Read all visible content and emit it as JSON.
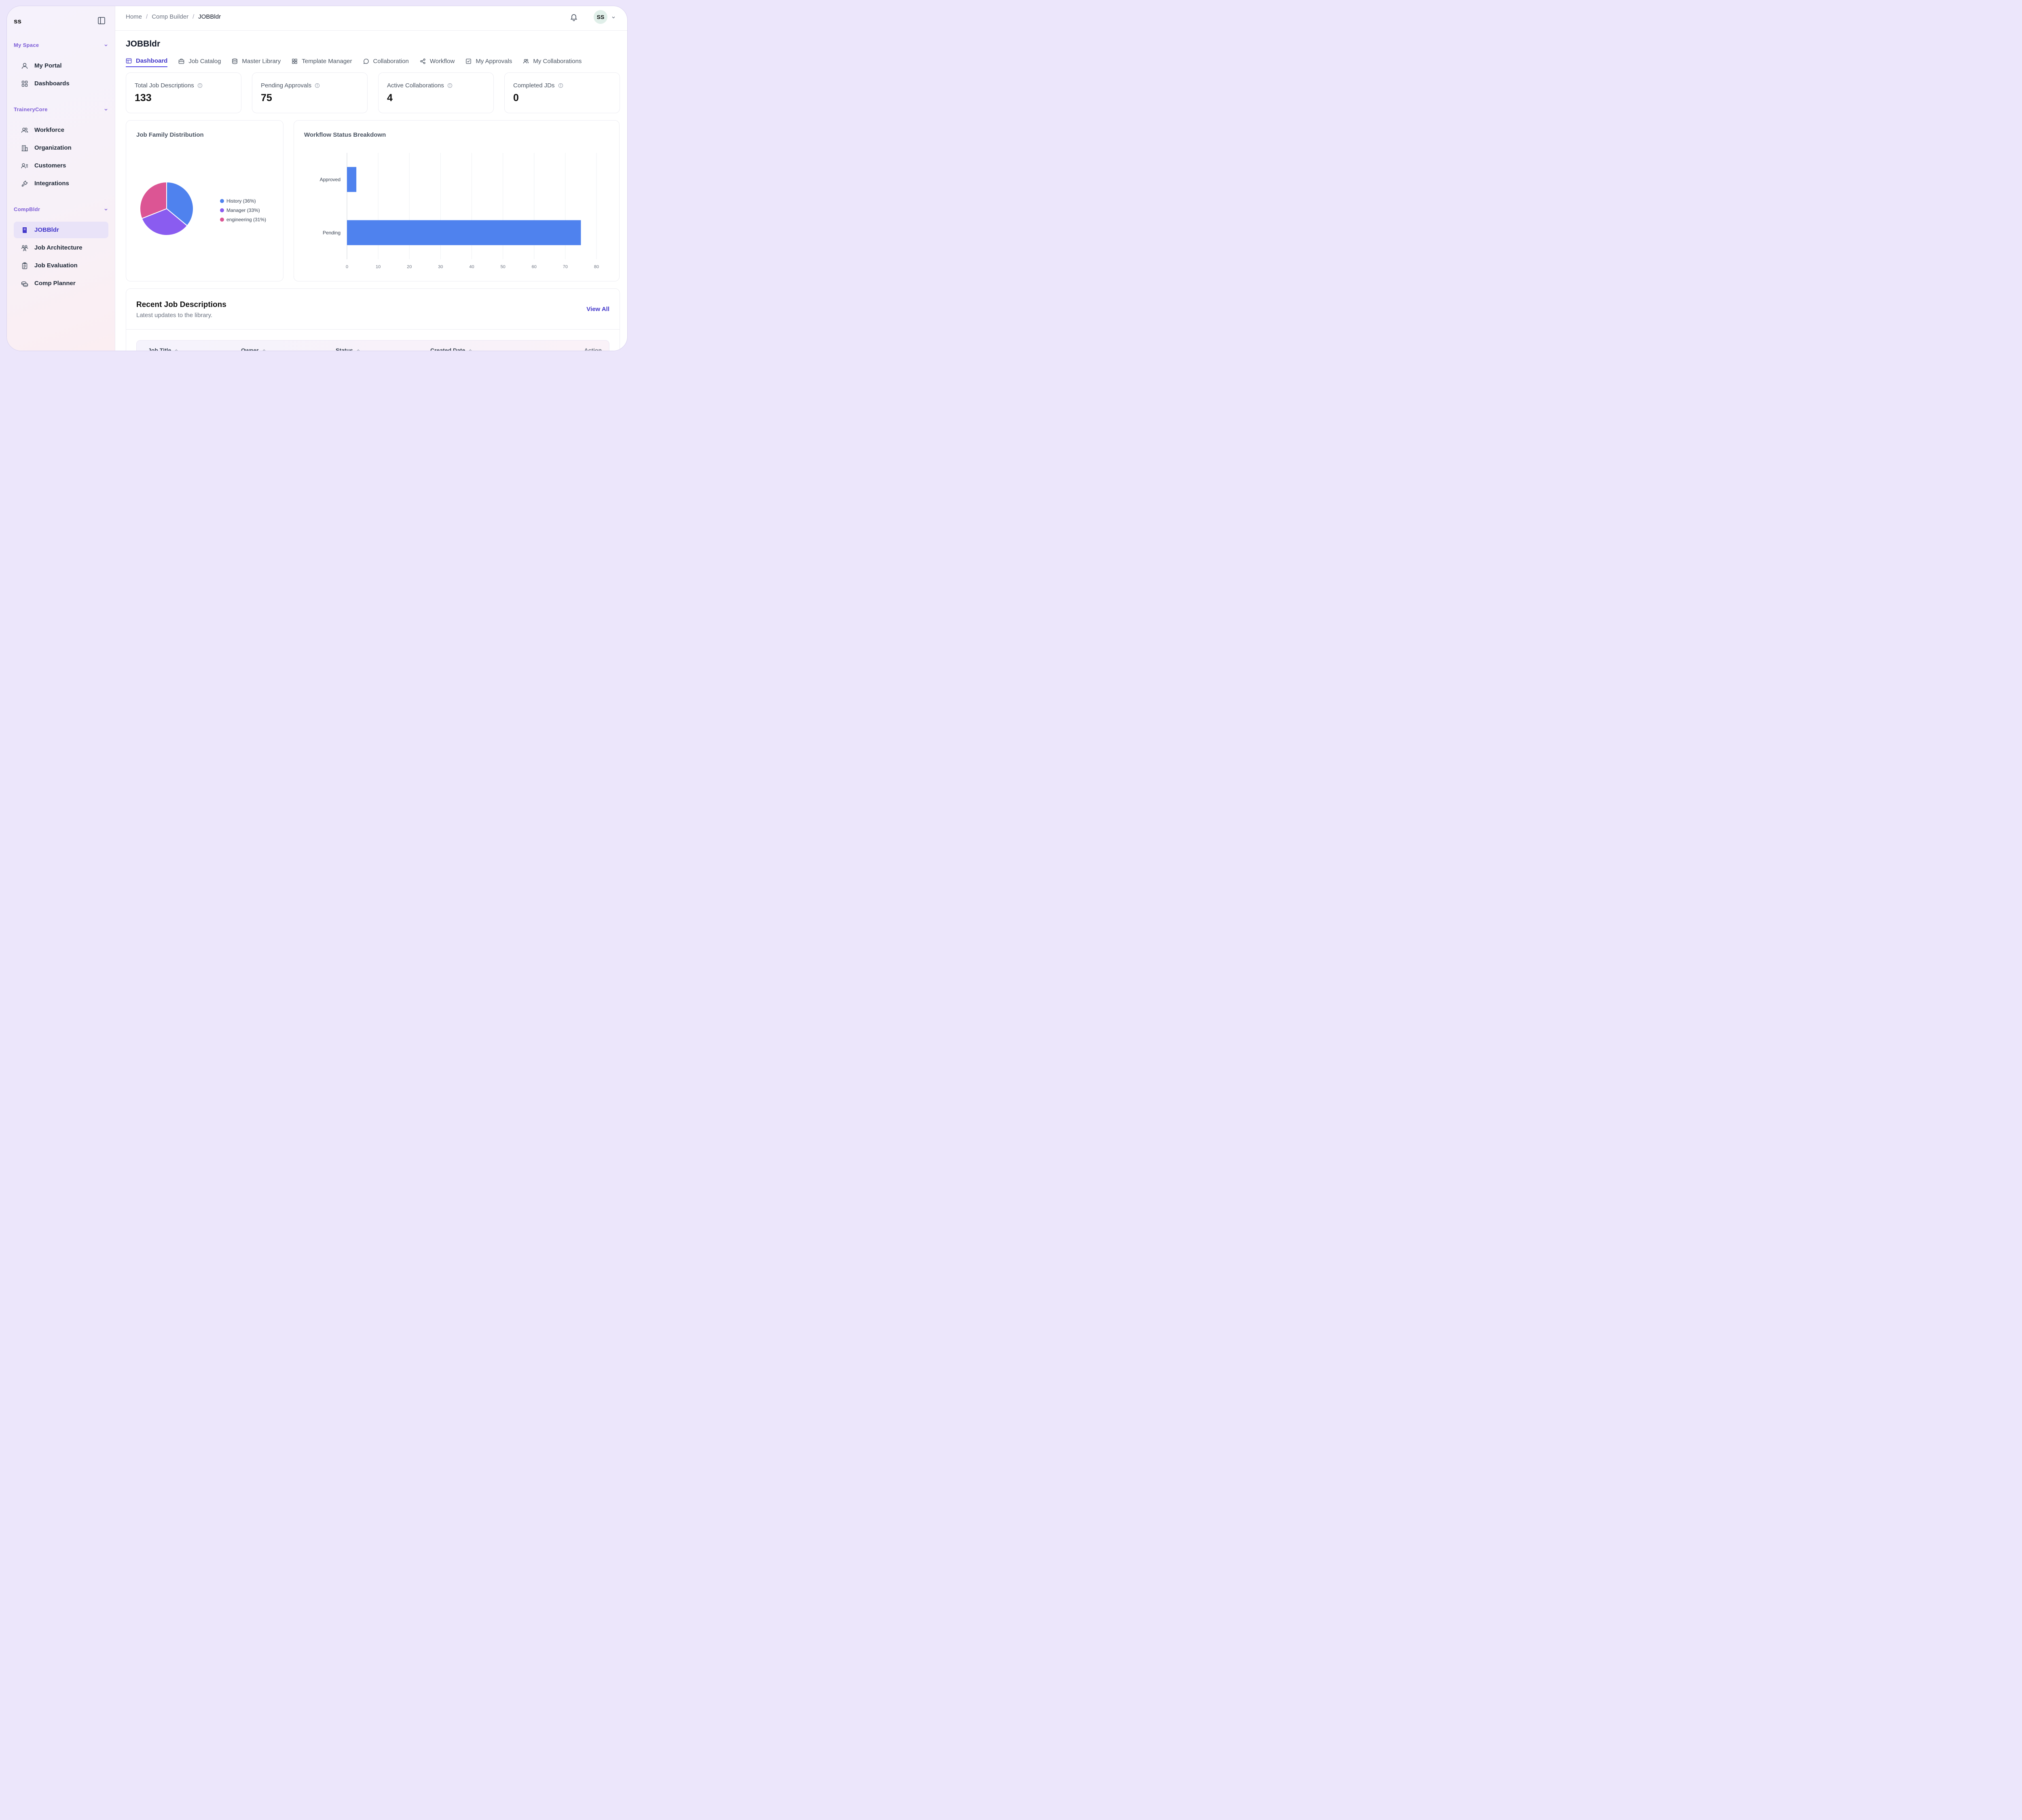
{
  "brand": "ss",
  "sidebar": {
    "sections": [
      {
        "title": "My Space",
        "items": [
          {
            "label": "My Portal",
            "icon": "user-icon"
          },
          {
            "label": "Dashboards",
            "icon": "grid-icon"
          }
        ]
      },
      {
        "title": "TraineryCore",
        "items": [
          {
            "label": "Workforce",
            "icon": "users-icon"
          },
          {
            "label": "Organization",
            "icon": "building-icon"
          },
          {
            "label": "Customers",
            "icon": "user-list-icon"
          },
          {
            "label": "Integrations",
            "icon": "plug-icon"
          }
        ]
      },
      {
        "title": "CompBldr",
        "items": [
          {
            "label": "JOBBldr",
            "icon": "book-icon",
            "active": true
          },
          {
            "label": "Job Architecture",
            "icon": "team-icon"
          },
          {
            "label": "Job Evaluation",
            "icon": "clipboard-icon"
          },
          {
            "label": "Comp Planner",
            "icon": "coins-icon"
          }
        ]
      }
    ]
  },
  "header": {
    "breadcrumb": [
      "Home",
      "Comp Builder",
      "JOBBldr"
    ],
    "avatar_initials": "SS"
  },
  "page": {
    "title": "JOBBldr",
    "tabs": [
      {
        "label": "Dashboard",
        "icon": "layout-icon",
        "active": true
      },
      {
        "label": "Job Catalog",
        "icon": "briefcase-icon"
      },
      {
        "label": "Master Library",
        "icon": "database-icon"
      },
      {
        "label": "Template Manager",
        "icon": "grid-icon"
      },
      {
        "label": "Collaboration",
        "icon": "chat-icon"
      },
      {
        "label": "Workflow",
        "icon": "share-icon"
      },
      {
        "label": "My Approvals",
        "icon": "checkbox-icon"
      },
      {
        "label": "My Collaborations",
        "icon": "users-icon"
      }
    ]
  },
  "stats": [
    {
      "label": "Total Job Descriptions",
      "value": "133"
    },
    {
      "label": "Pending Approvals",
      "value": "75"
    },
    {
      "label": "Active Collaborations",
      "value": "4"
    },
    {
      "label": "Completed JDs",
      "value": "0"
    }
  ],
  "chart_data": [
    {
      "type": "pie",
      "title": "Job Family Distribution",
      "slices": [
        {
          "label": "History (36%)",
          "value": 36,
          "color": "#4f82ee"
        },
        {
          "label": "Manager (33%)",
          "value": 33,
          "color": "#8a5cf0"
        },
        {
          "label": "engineering (31%)",
          "value": 31,
          "color": "#dc5594"
        }
      ]
    },
    {
      "type": "bar",
      "orientation": "horizontal",
      "title": "Workflow Status Breakdown",
      "categories": [
        "Approved",
        "Pending"
      ],
      "values": [
        3,
        75
      ],
      "xlim": [
        0,
        80
      ],
      "xticks": [
        0,
        10,
        20,
        30,
        40,
        50,
        60,
        70,
        80
      ],
      "color": "#4f82ee",
      "grid": true
    }
  ],
  "recent": {
    "title": "Recent Job Descriptions",
    "subtitle": "Latest updates to the library.",
    "view_all": "View All",
    "columns": [
      "Job Title",
      "Owner",
      "Status",
      "Created Date",
      "Action"
    ]
  }
}
